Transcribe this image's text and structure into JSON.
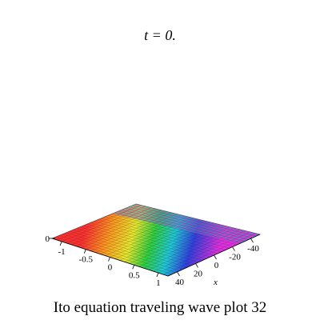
{
  "chart_data": {
    "type": "surface3d",
    "title": "t = 0.",
    "caption": "Ito equation  traveling wave plot 32",
    "xlabel": "x",
    "xlim": [
      50,
      -50
    ],
    "xticks": [
      40,
      20,
      0,
      -20,
      -40
    ],
    "ylim": [
      -1.2,
      1.2
    ],
    "yticks": [
      -1,
      -0.5,
      0,
      0.5,
      1
    ],
    "zticks": [
      0
    ]
  }
}
